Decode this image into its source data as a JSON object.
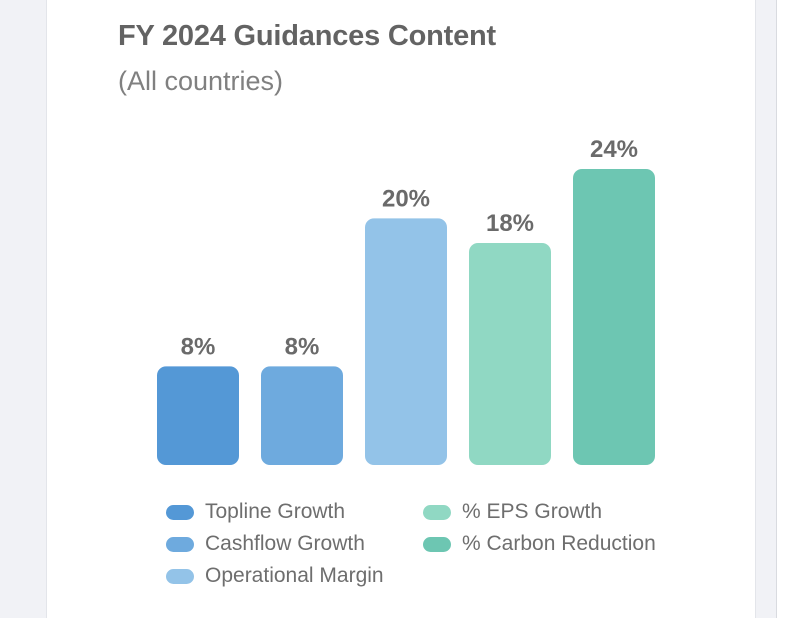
{
  "chart_data": {
    "type": "bar",
    "title": "FY 2024 Guidances Content",
    "subtitle": "(All countries)",
    "categories": [
      "Topline Growth",
      "Cashflow Growth",
      "Operational Margin",
      "% EPS Growth",
      "% Carbon Reduction"
    ],
    "values": [
      8,
      8,
      20,
      18,
      24
    ],
    "value_labels": [
      "8%",
      "8%",
      "20%",
      "18%",
      "24%"
    ],
    "colors": [
      "#5498d6",
      "#6eaade",
      "#93c3e8",
      "#90d8c3",
      "#6dc6b2"
    ],
    "ylim": [
      0,
      24
    ],
    "xlabel": "",
    "ylabel": "",
    "grid": false,
    "legend": "bottom"
  }
}
